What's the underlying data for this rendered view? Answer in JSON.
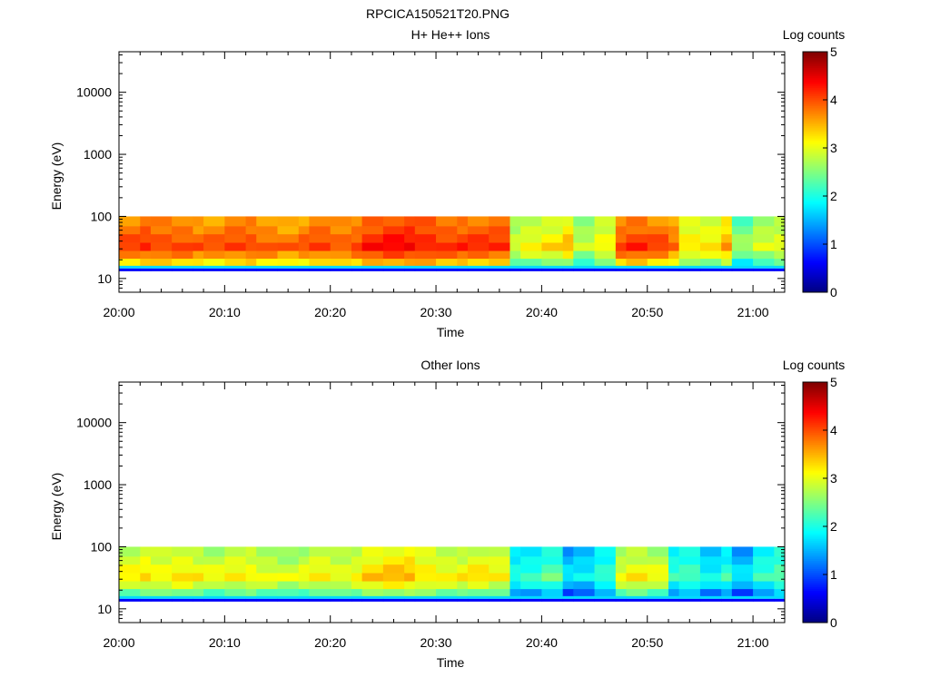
{
  "figure_title": "RPCICA150521T20.PNG",
  "colors": {
    "colormap": [
      "#00007f",
      "#0000ff",
      "#0080ff",
      "#00ffff",
      "#80ff80",
      "#ffff00",
      "#ff8000",
      "#ff0000",
      "#7f0000"
    ],
    "axis": "#000000",
    "background": "#ffffff"
  },
  "chart_data": [
    {
      "type": "heatmap",
      "title": "H+ He++ Ions",
      "xlabel": "Time",
      "ylabel": "Energy (eV)",
      "y_scale": "log",
      "ylim": [
        6,
        45000
      ],
      "y_ticks": [
        10,
        100,
        1000,
        10000
      ],
      "y_tick_labels": [
        "10",
        "100",
        "1000",
        "10000"
      ],
      "x_ticks": [
        "20:00",
        "20:10",
        "20:20",
        "20:30",
        "20:40",
        "20:50",
        "21:00"
      ],
      "x_range": [
        "20:00",
        "21:03"
      ],
      "colorbar": {
        "label": "Log counts",
        "range": [
          0,
          5
        ],
        "ticks": [
          "0",
          "1",
          "2",
          "3",
          "4",
          "5"
        ]
      },
      "energy_band_ev": [
        10,
        100
      ],
      "time_bins": [
        "20:00",
        "20:02",
        "20:03",
        "20:05",
        "20:07",
        "20:08",
        "20:10",
        "20:12",
        "20:13",
        "20:15",
        "20:17",
        "20:18",
        "20:20",
        "20:22",
        "20:23",
        "20:25",
        "20:27",
        "20:28",
        "20:30",
        "20:32",
        "20:33",
        "20:35",
        "20:37",
        "20:38",
        "20:40",
        "20:42",
        "20:43",
        "20:45",
        "20:47",
        "20:48",
        "20:50",
        "20:52",
        "20:53",
        "20:55",
        "20:57",
        "20:58",
        "21:00",
        "21:02"
      ],
      "band_log_counts": [
        3.9,
        4.0,
        3.9,
        3.9,
        3.8,
        3.8,
        3.9,
        3.9,
        3.8,
        3.7,
        3.8,
        3.9,
        3.8,
        3.9,
        4.1,
        4.2,
        4.2,
        4.1,
        4.0,
        4.0,
        4.0,
        4.0,
        2.8,
        3.0,
        3.1,
        3.3,
        2.7,
        3.0,
        3.9,
        4.0,
        3.9,
        3.7,
        3.1,
        3.1,
        3.4,
        2.5,
        2.8,
        2.9
      ]
    },
    {
      "type": "heatmap",
      "title": "Other Ions",
      "xlabel": "Time",
      "ylabel": "Energy (eV)",
      "y_scale": "log",
      "ylim": [
        6,
        45000
      ],
      "y_ticks": [
        10,
        100,
        1000,
        10000
      ],
      "y_tick_labels": [
        "10",
        "100",
        "1000",
        "10000"
      ],
      "x_ticks": [
        "20:00",
        "20:10",
        "20:20",
        "20:30",
        "20:40",
        "20:50",
        "21:00"
      ],
      "x_range": [
        "20:00",
        "21:03"
      ],
      "colorbar": {
        "label": "Log counts",
        "range": [
          0,
          5
        ],
        "ticks": [
          "0",
          "1",
          "2",
          "3",
          "4",
          "5"
        ]
      },
      "energy_band_ev": [
        10,
        100
      ],
      "time_bins": [
        "20:00",
        "20:02",
        "20:03",
        "20:05",
        "20:07",
        "20:08",
        "20:10",
        "20:12",
        "20:13",
        "20:15",
        "20:17",
        "20:18",
        "20:20",
        "20:22",
        "20:23",
        "20:25",
        "20:27",
        "20:28",
        "20:30",
        "20:32",
        "20:33",
        "20:35",
        "20:37",
        "20:38",
        "20:40",
        "20:42",
        "20:43",
        "20:45",
        "20:47",
        "20:48",
        "20:50",
        "20:52",
        "20:53",
        "20:55",
        "20:57",
        "20:58",
        "21:00",
        "21:02"
      ],
      "band_log_counts": [
        3.0,
        3.1,
        3.0,
        3.1,
        3.0,
        2.9,
        3.0,
        3.0,
        2.9,
        2.8,
        2.9,
        3.0,
        2.9,
        3.0,
        3.2,
        3.3,
        3.3,
        3.1,
        3.0,
        3.0,
        3.1,
        3.0,
        1.9,
        2.0,
        2.2,
        1.6,
        1.7,
        2.0,
        2.9,
        3.0,
        2.9,
        2.0,
        2.1,
        1.8,
        2.0,
        1.6,
        2.0,
        2.2
      ]
    }
  ]
}
